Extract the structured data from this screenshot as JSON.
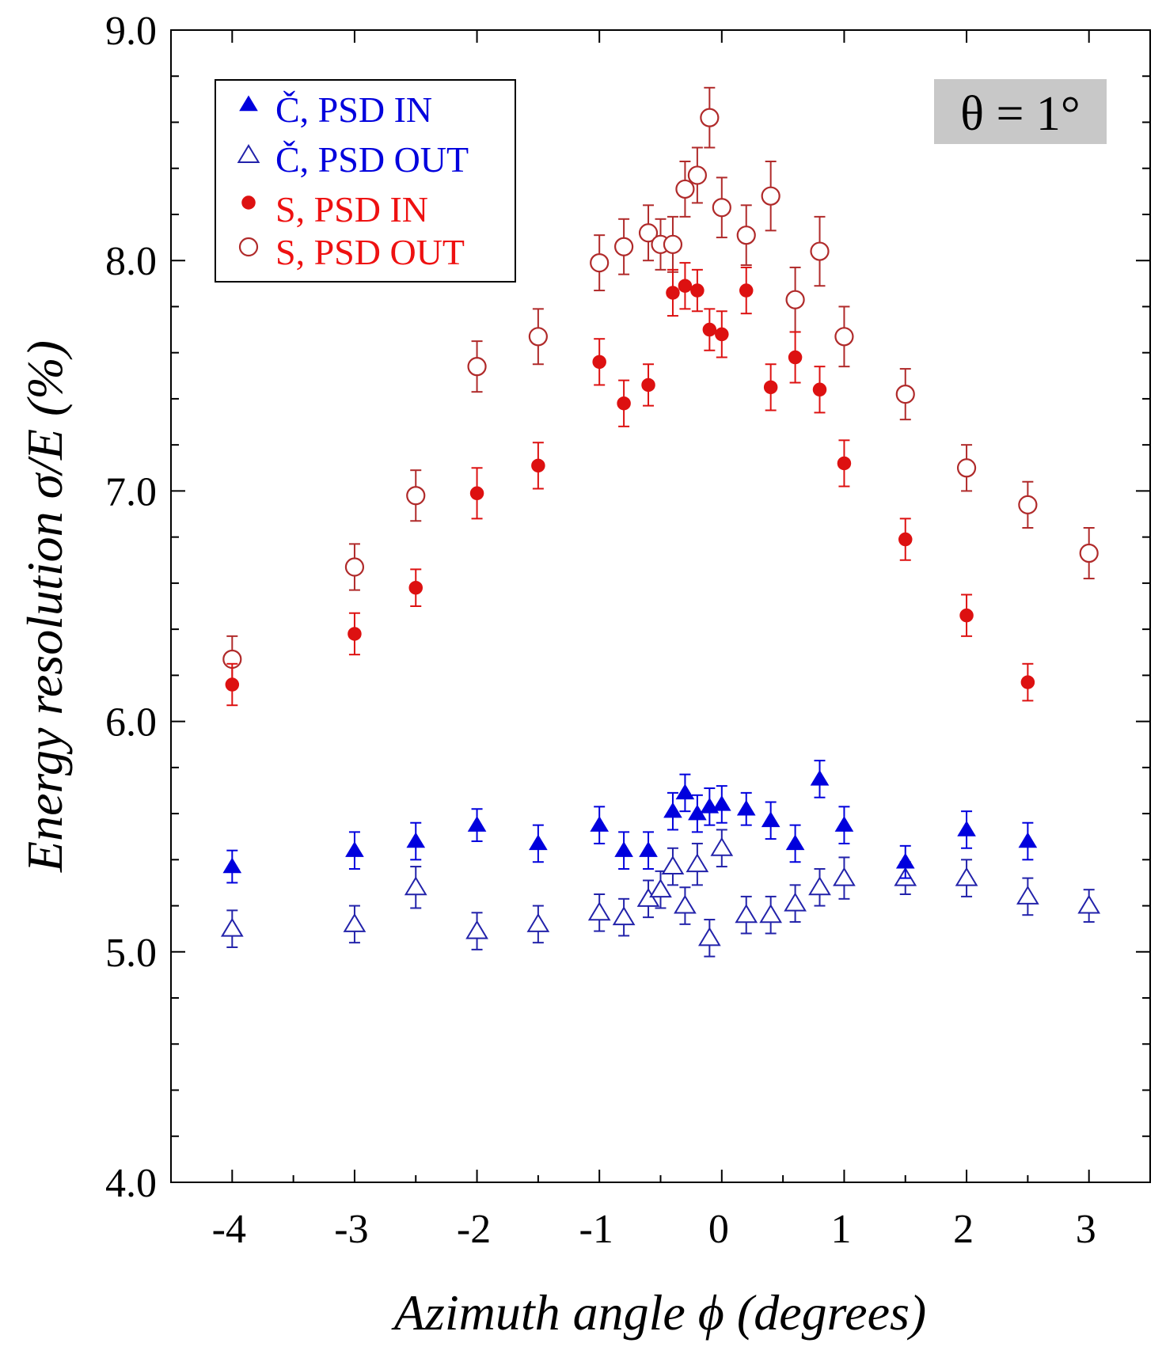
{
  "chart_data": {
    "type": "scatter",
    "title": "",
    "xlabel": "Azimuth angle ϕ (degrees)",
    "ylabel": "Energy resolution σ/E (%)",
    "xlim": [
      -4.5,
      3.5
    ],
    "ylim": [
      4.0,
      9.0
    ],
    "x_ticks": [
      -4,
      -3,
      -2,
      -1,
      0,
      1,
      2,
      3
    ],
    "x_tick_labels": [
      "-4",
      "-3",
      "-2",
      "-1",
      "0",
      "1",
      "2",
      "3"
    ],
    "y_ticks": [
      4.0,
      5.0,
      6.0,
      7.0,
      8.0,
      9.0
    ],
    "y_tick_labels": [
      "4.0",
      "5.0",
      "6.0",
      "7.0",
      "8.0",
      "9.0"
    ],
    "grid": false,
    "legend_position": "top-left",
    "annotation": "θ = 1°",
    "series": [
      {
        "name": "Č, PSD IN",
        "marker": "triangle-filled",
        "color": "#0000dd",
        "x": [
          -4,
          -3,
          -2.5,
          -2,
          -1.5,
          -1,
          -0.8,
          -0.6,
          -0.4,
          -0.3,
          -0.2,
          -0.1,
          0,
          0.2,
          0.4,
          0.6,
          0.8,
          1,
          1.5,
          2,
          2.5
        ],
        "y": [
          5.37,
          5.44,
          5.48,
          5.55,
          5.47,
          5.55,
          5.44,
          5.44,
          5.61,
          5.69,
          5.6,
          5.63,
          5.64,
          5.62,
          5.57,
          5.47,
          5.75,
          5.55,
          5.39,
          5.53,
          5.48
        ],
        "err": [
          0.07,
          0.08,
          0.08,
          0.07,
          0.08,
          0.08,
          0.08,
          0.08,
          0.08,
          0.08,
          0.08,
          0.08,
          0.08,
          0.07,
          0.08,
          0.08,
          0.08,
          0.08,
          0.07,
          0.08,
          0.08
        ]
      },
      {
        "name": "Č, PSD OUT",
        "marker": "triangle-open",
        "color": "#2222aa",
        "x": [
          -4,
          -3,
          -2.5,
          -2,
          -1.5,
          -1,
          -0.8,
          -0.6,
          -0.5,
          -0.4,
          -0.3,
          -0.2,
          -0.1,
          0,
          0.2,
          0.4,
          0.6,
          0.8,
          1,
          1.5,
          2,
          2.5,
          3
        ],
        "y": [
          5.1,
          5.12,
          5.28,
          5.09,
          5.12,
          5.17,
          5.15,
          5.23,
          5.27,
          5.37,
          5.2,
          5.38,
          5.06,
          5.45,
          5.16,
          5.16,
          5.21,
          5.28,
          5.32,
          5.32,
          5.32,
          5.24,
          5.2
        ],
        "err": [
          0.08,
          0.08,
          0.09,
          0.08,
          0.08,
          0.08,
          0.08,
          0.08,
          0.08,
          0.08,
          0.08,
          0.09,
          0.08,
          0.08,
          0.08,
          0.08,
          0.08,
          0.08,
          0.09,
          0.07,
          0.08,
          0.08,
          0.07
        ]
      },
      {
        "name": "S, PSD IN",
        "marker": "circle-filled",
        "color": "#dd1111",
        "x": [
          -4,
          -3,
          -2.5,
          -2,
          -1.5,
          -1,
          -0.8,
          -0.6,
          -0.4,
          -0.3,
          -0.2,
          -0.1,
          0,
          0.2,
          0.4,
          0.6,
          0.8,
          1,
          1.5,
          2,
          2.5
        ],
        "y": [
          6.16,
          6.38,
          6.58,
          6.99,
          7.11,
          7.56,
          7.38,
          7.46,
          7.86,
          7.89,
          7.87,
          7.7,
          7.68,
          7.87,
          7.45,
          7.58,
          7.44,
          7.12,
          6.79,
          6.46,
          6.17
        ],
        "err": [
          0.09,
          0.09,
          0.08,
          0.11,
          0.1,
          0.1,
          0.1,
          0.09,
          0.1,
          0.1,
          0.09,
          0.09,
          0.1,
          0.1,
          0.1,
          0.11,
          0.1,
          0.1,
          0.09,
          0.09,
          0.08
        ]
      },
      {
        "name": "S, PSD OUT",
        "marker": "circle-open",
        "color": "#b02a2a",
        "x": [
          -4,
          -3,
          -2.5,
          -2,
          -1.5,
          -1,
          -0.8,
          -0.6,
          -0.5,
          -0.4,
          -0.3,
          -0.2,
          -0.1,
          0,
          0.2,
          0.4,
          0.6,
          0.8,
          1,
          1.5,
          2,
          2.5,
          3
        ],
        "y": [
          6.27,
          6.67,
          6.98,
          7.54,
          7.67,
          7.99,
          8.06,
          8.12,
          8.07,
          8.07,
          8.31,
          8.37,
          8.62,
          8.23,
          8.11,
          8.28,
          7.83,
          8.04,
          7.67,
          7.42,
          7.1,
          6.94,
          6.73
        ],
        "err": [
          0.1,
          0.1,
          0.11,
          0.11,
          0.12,
          0.12,
          0.12,
          0.12,
          0.11,
          0.12,
          0.12,
          0.12,
          0.13,
          0.13,
          0.13,
          0.15,
          0.14,
          0.15,
          0.13,
          0.11,
          0.1,
          0.1,
          0.11
        ]
      }
    ]
  }
}
